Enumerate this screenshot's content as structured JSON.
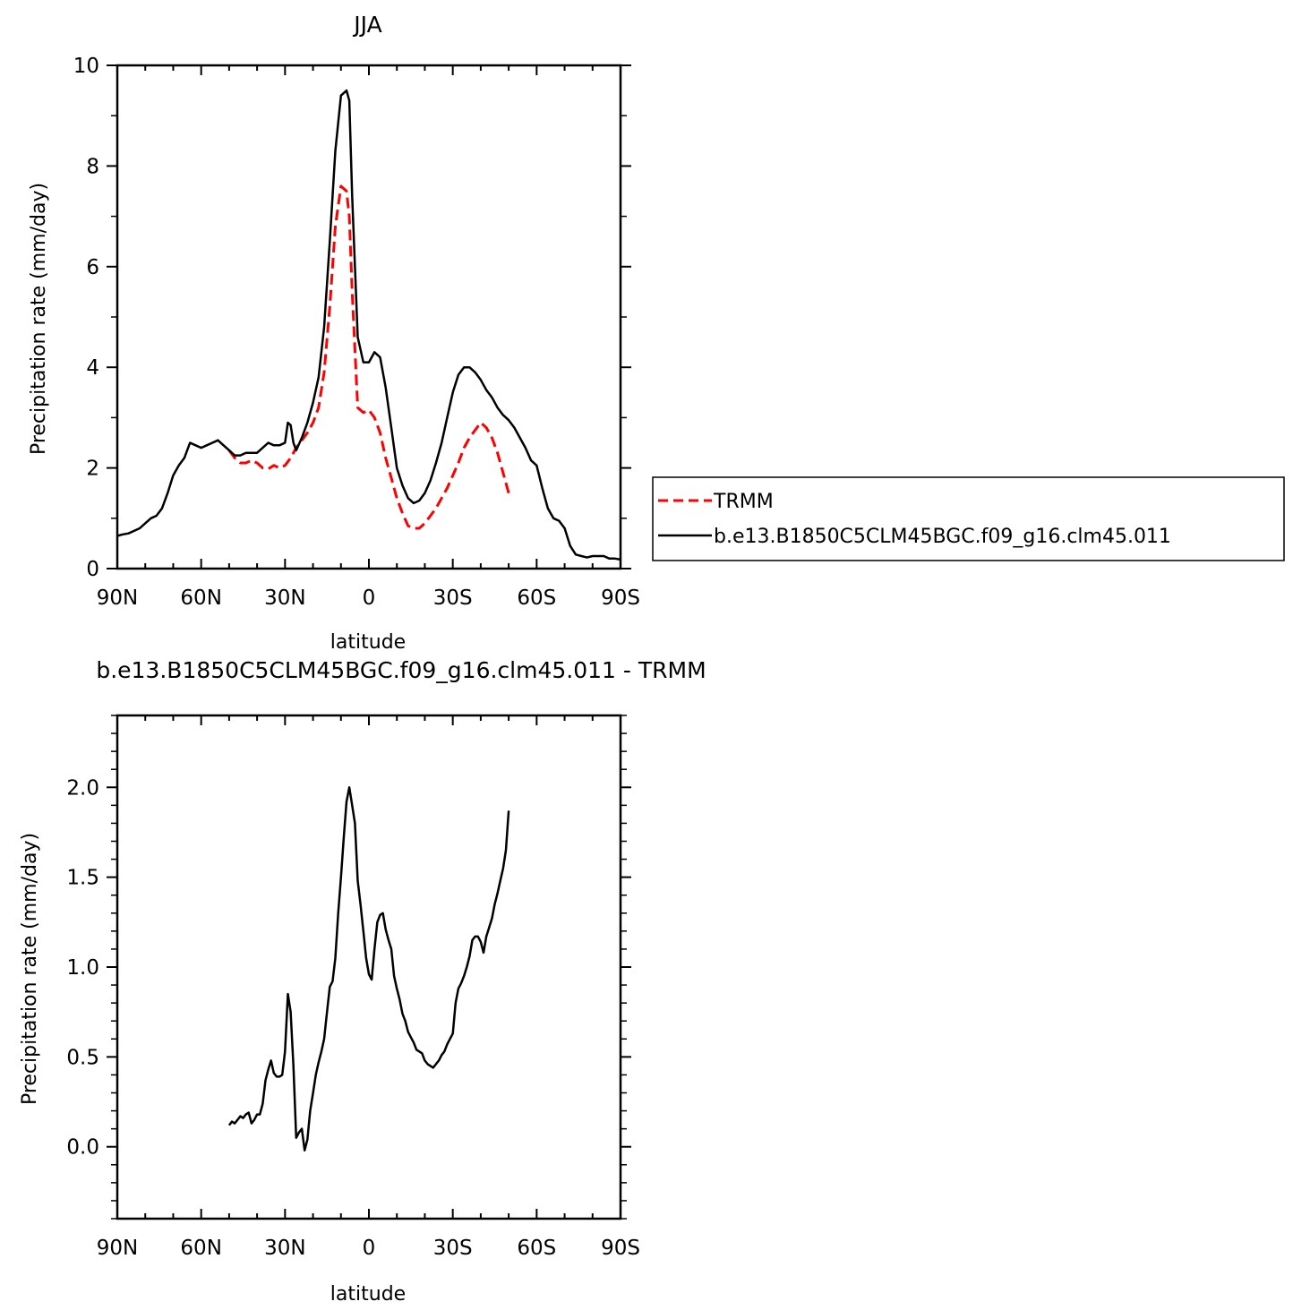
{
  "chart_data": [
    {
      "type": "line",
      "title": "JJA",
      "xlabel": "latitude",
      "ylabel": "Precipitation rate (mm/day)",
      "xlim": [
        90,
        -90
      ],
      "ylim": [
        0,
        10
      ],
      "x_ticks": [
        {
          "value": 90,
          "label": "90N"
        },
        {
          "value": 60,
          "label": "60N"
        },
        {
          "value": 30,
          "label": "30N"
        },
        {
          "value": 0,
          "label": "0"
        },
        {
          "value": -30,
          "label": "30S"
        },
        {
          "value": -60,
          "label": "60S"
        },
        {
          "value": -90,
          "label": "90S"
        }
      ],
      "y_ticks": [
        {
          "value": 0,
          "label": "0"
        },
        {
          "value": 2,
          "label": "2"
        },
        {
          "value": 4,
          "label": "4"
        },
        {
          "value": 6,
          "label": "6"
        },
        {
          "value": 8,
          "label": "8"
        },
        {
          "value": 10,
          "label": "10"
        }
      ],
      "legend_position": "right",
      "series": [
        {
          "name": "TRMM",
          "color": "#ff0000",
          "style": "dashed",
          "x": [
            50,
            48,
            46,
            44,
            42,
            40,
            38,
            36,
            34,
            32,
            30,
            28,
            26,
            24,
            22,
            20,
            18,
            16,
            14,
            12,
            10,
            8,
            7,
            6,
            4,
            2,
            0,
            -2,
            -4,
            -6,
            -8,
            -10,
            -12,
            -14,
            -16,
            -18,
            -20,
            -22,
            -24,
            -26,
            -28,
            -30,
            -32,
            -34,
            -36,
            -38,
            -40,
            -42,
            -44,
            -46,
            -48,
            -50
          ],
          "y": [
            2.35,
            2.2,
            2.1,
            2.1,
            2.15,
            2.1,
            2.0,
            1.98,
            2.05,
            2.0,
            2.05,
            2.2,
            2.4,
            2.55,
            2.7,
            2.9,
            3.2,
            3.9,
            5.2,
            6.8,
            7.6,
            7.5,
            7.0,
            5.5,
            3.2,
            3.1,
            3.15,
            3.0,
            2.7,
            2.2,
            1.8,
            1.4,
            1.1,
            0.85,
            0.8,
            0.8,
            0.9,
            1.05,
            1.2,
            1.4,
            1.6,
            1.85,
            2.1,
            2.4,
            2.6,
            2.75,
            2.9,
            2.8,
            2.6,
            2.3,
            1.9,
            1.5
          ]
        },
        {
          "name": "b.e13.B1850C5CLM45BGC.f09_g16.clm45.011",
          "color": "#000000",
          "style": "solid",
          "x": [
            90,
            88,
            86,
            84,
            82,
            80,
            78,
            76,
            74,
            72,
            70,
            68,
            66,
            64,
            62,
            60,
            58,
            56,
            54,
            52,
            50,
            48,
            46,
            44,
            42,
            40,
            38,
            36,
            34,
            32,
            30,
            29,
            28,
            27,
            26,
            24,
            22,
            20,
            18,
            16,
            14,
            12,
            10,
            8,
            7,
            6,
            4,
            2,
            0,
            -2,
            -4,
            -6,
            -8,
            -10,
            -12,
            -14,
            -16,
            -18,
            -20,
            -22,
            -24,
            -26,
            -28,
            -30,
            -32,
            -34,
            -36,
            -38,
            -40,
            -42,
            -44,
            -46,
            -48,
            -50,
            -52,
            -54,
            -56,
            -58,
            -60,
            -62,
            -64,
            -66,
            -68,
            -70,
            -72,
            -74,
            -76,
            -78,
            -80,
            -82,
            -84,
            -86,
            -88,
            -90
          ],
          "y": [
            0.65,
            0.68,
            0.7,
            0.75,
            0.8,
            0.9,
            1.0,
            1.05,
            1.2,
            1.5,
            1.85,
            2.05,
            2.2,
            2.5,
            2.45,
            2.4,
            2.45,
            2.5,
            2.55,
            2.45,
            2.35,
            2.25,
            2.25,
            2.3,
            2.3,
            2.3,
            2.4,
            2.5,
            2.45,
            2.45,
            2.5,
            2.9,
            2.85,
            2.5,
            2.35,
            2.6,
            2.9,
            3.3,
            3.8,
            4.8,
            6.5,
            8.3,
            9.4,
            9.5,
            9.3,
            7.4,
            4.6,
            4.1,
            4.1,
            4.3,
            4.2,
            3.6,
            2.8,
            2.0,
            1.65,
            1.4,
            1.3,
            1.35,
            1.5,
            1.75,
            2.1,
            2.5,
            3.0,
            3.5,
            3.85,
            4.0,
            4.0,
            3.9,
            3.75,
            3.55,
            3.4,
            3.2,
            3.05,
            2.95,
            2.8,
            2.6,
            2.4,
            2.15,
            2.05,
            1.6,
            1.2,
            1.0,
            0.95,
            0.8,
            0.45,
            0.28,
            0.25,
            0.22,
            0.25,
            0.25,
            0.25,
            0.2,
            0.2,
            0.18
          ]
        }
      ]
    },
    {
      "type": "line",
      "title": "b.e13.B1850C5CLM45BGC.f09_g16.clm45.011 - TRMM",
      "xlabel": "latitude",
      "ylabel": "Precipitation rate (mm/day)",
      "xlim": [
        90,
        -90
      ],
      "ylim": [
        -0.4,
        2.4
      ],
      "x_ticks": [
        {
          "value": 90,
          "label": "90N"
        },
        {
          "value": 60,
          "label": "60N"
        },
        {
          "value": 30,
          "label": "30N"
        },
        {
          "value": 0,
          "label": "0"
        },
        {
          "value": -30,
          "label": "30S"
        },
        {
          "value": -60,
          "label": "60S"
        },
        {
          "value": -90,
          "label": "90S"
        }
      ],
      "y_ticks": [
        {
          "value": 0.0,
          "label": "0.0"
        },
        {
          "value": 0.5,
          "label": "0.5"
        },
        {
          "value": 1.0,
          "label": "1.0"
        },
        {
          "value": 1.5,
          "label": "1.5"
        },
        {
          "value": 2.0,
          "label": "2.0"
        }
      ],
      "series": [
        {
          "color": "#000000",
          "style": "solid",
          "x": [
            50,
            49,
            48,
            47,
            46,
            45,
            44,
            43,
            42,
            41,
            40,
            39,
            38,
            37,
            36,
            35,
            34,
            33,
            32,
            31,
            30,
            29,
            28,
            27,
            26,
            25,
            24,
            23,
            22,
            21,
            20,
            19,
            18,
            17,
            16,
            15,
            14,
            13,
            12,
            11,
            10,
            9,
            8,
            7,
            6,
            5,
            4,
            3,
            2,
            1,
            0,
            -1,
            -2,
            -3,
            -4,
            -5,
            -6,
            -7,
            -8,
            -9,
            -10,
            -11,
            -12,
            -13,
            -14,
            -15,
            -16,
            -17,
            -18,
            -19,
            -20,
            -21,
            -22,
            -23,
            -24,
            -25,
            -26,
            -27,
            -28,
            -29,
            -30,
            -31,
            -32,
            -33,
            -34,
            -35,
            -36,
            -37,
            -38,
            -39,
            -40,
            -41,
            -42,
            -43,
            -44,
            -45,
            -46,
            -47,
            -48,
            -49,
            -50
          ],
          "y": [
            0.12,
            0.14,
            0.13,
            0.15,
            0.17,
            0.16,
            0.18,
            0.19,
            0.13,
            0.15,
            0.18,
            0.18,
            0.24,
            0.37,
            0.43,
            0.48,
            0.41,
            0.39,
            0.39,
            0.4,
            0.53,
            0.85,
            0.75,
            0.45,
            0.05,
            0.08,
            0.1,
            -0.02,
            0.04,
            0.2,
            0.3,
            0.4,
            0.47,
            0.53,
            0.6,
            0.75,
            0.89,
            0.92,
            1.05,
            1.3,
            1.5,
            1.72,
            1.92,
            2.0,
            1.9,
            1.8,
            1.48,
            1.35,
            1.2,
            1.05,
            0.96,
            0.93,
            1.1,
            1.25,
            1.29,
            1.3,
            1.21,
            1.15,
            1.1,
            0.95,
            0.88,
            0.82,
            0.74,
            0.7,
            0.64,
            0.61,
            0.58,
            0.54,
            0.53,
            0.52,
            0.48,
            0.46,
            0.45,
            0.44,
            0.46,
            0.48,
            0.51,
            0.53,
            0.57,
            0.6,
            0.63,
            0.8,
            0.88,
            0.91,
            0.95,
            1.0,
            1.06,
            1.15,
            1.17,
            1.17,
            1.14,
            1.08,
            1.17,
            1.22,
            1.27,
            1.35,
            1.41,
            1.48,
            1.55,
            1.65,
            1.87
          ]
        }
      ]
    }
  ]
}
